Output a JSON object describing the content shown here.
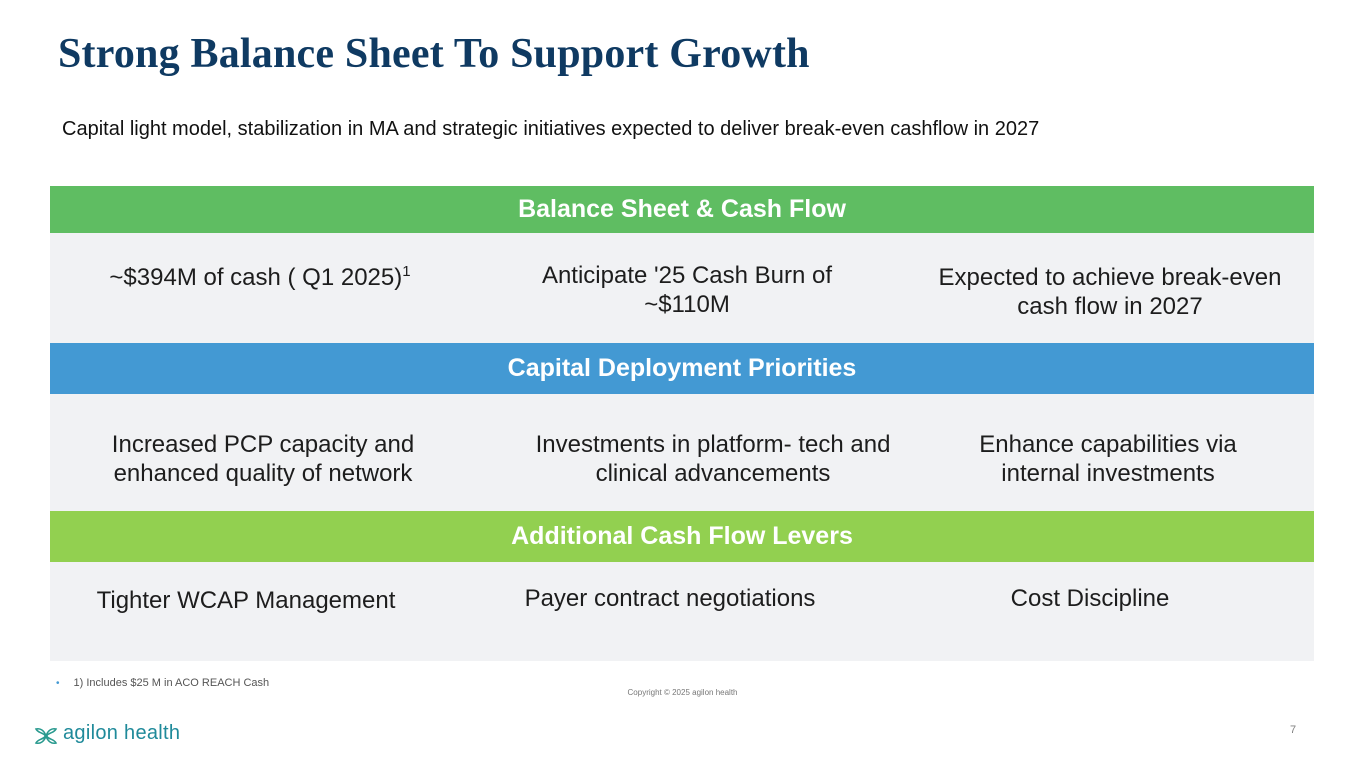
{
  "slide": {
    "title": "Strong Balance Sheet To Support Growth",
    "subtitle": "Capital light model, stabilization in MA and strategic initiatives expected to deliver break-even cashflow in 2027"
  },
  "sections": [
    {
      "header": "Balance Sheet & Cash Flow",
      "header_color": "#5fbd62",
      "items": [
        {
          "text": "~$394M of cash ( Q1 2025)",
          "sup": "1"
        },
        {
          "line1": "Anticipate '25  Cash Burn of",
          "line2": "~$110M"
        },
        {
          "line1": "Expected to achieve break-even",
          "line2": "cash flow in 2027"
        }
      ]
    },
    {
      "header": "Capital Deployment Priorities",
      "header_color": "#4399d3",
      "items": [
        {
          "line1": "Increased PCP capacity and",
          "line2": "enhanced quality of network"
        },
        {
          "line1": "Investments in platform-  tech and",
          "line2": "clinical advancements"
        },
        {
          "line1": "Enhance capabilities via",
          "line2": "internal investments"
        }
      ]
    },
    {
      "header": "Additional Cash Flow Levers",
      "header_color": "#92d050",
      "items": [
        {
          "text": "Tighter WCAP Management"
        },
        {
          "text": "Payer contract negotiations"
        },
        {
          "text": "Cost Discipline"
        }
      ]
    }
  ],
  "footer": {
    "bullet": "•",
    "footnote": "1) Includes $25 M in ACO REACH Cash",
    "copyright": "Copyright © 2025 agilon health",
    "page_number": "7",
    "logo_text": "agilon health",
    "logo_icon": "agilon-leaf-icon"
  }
}
